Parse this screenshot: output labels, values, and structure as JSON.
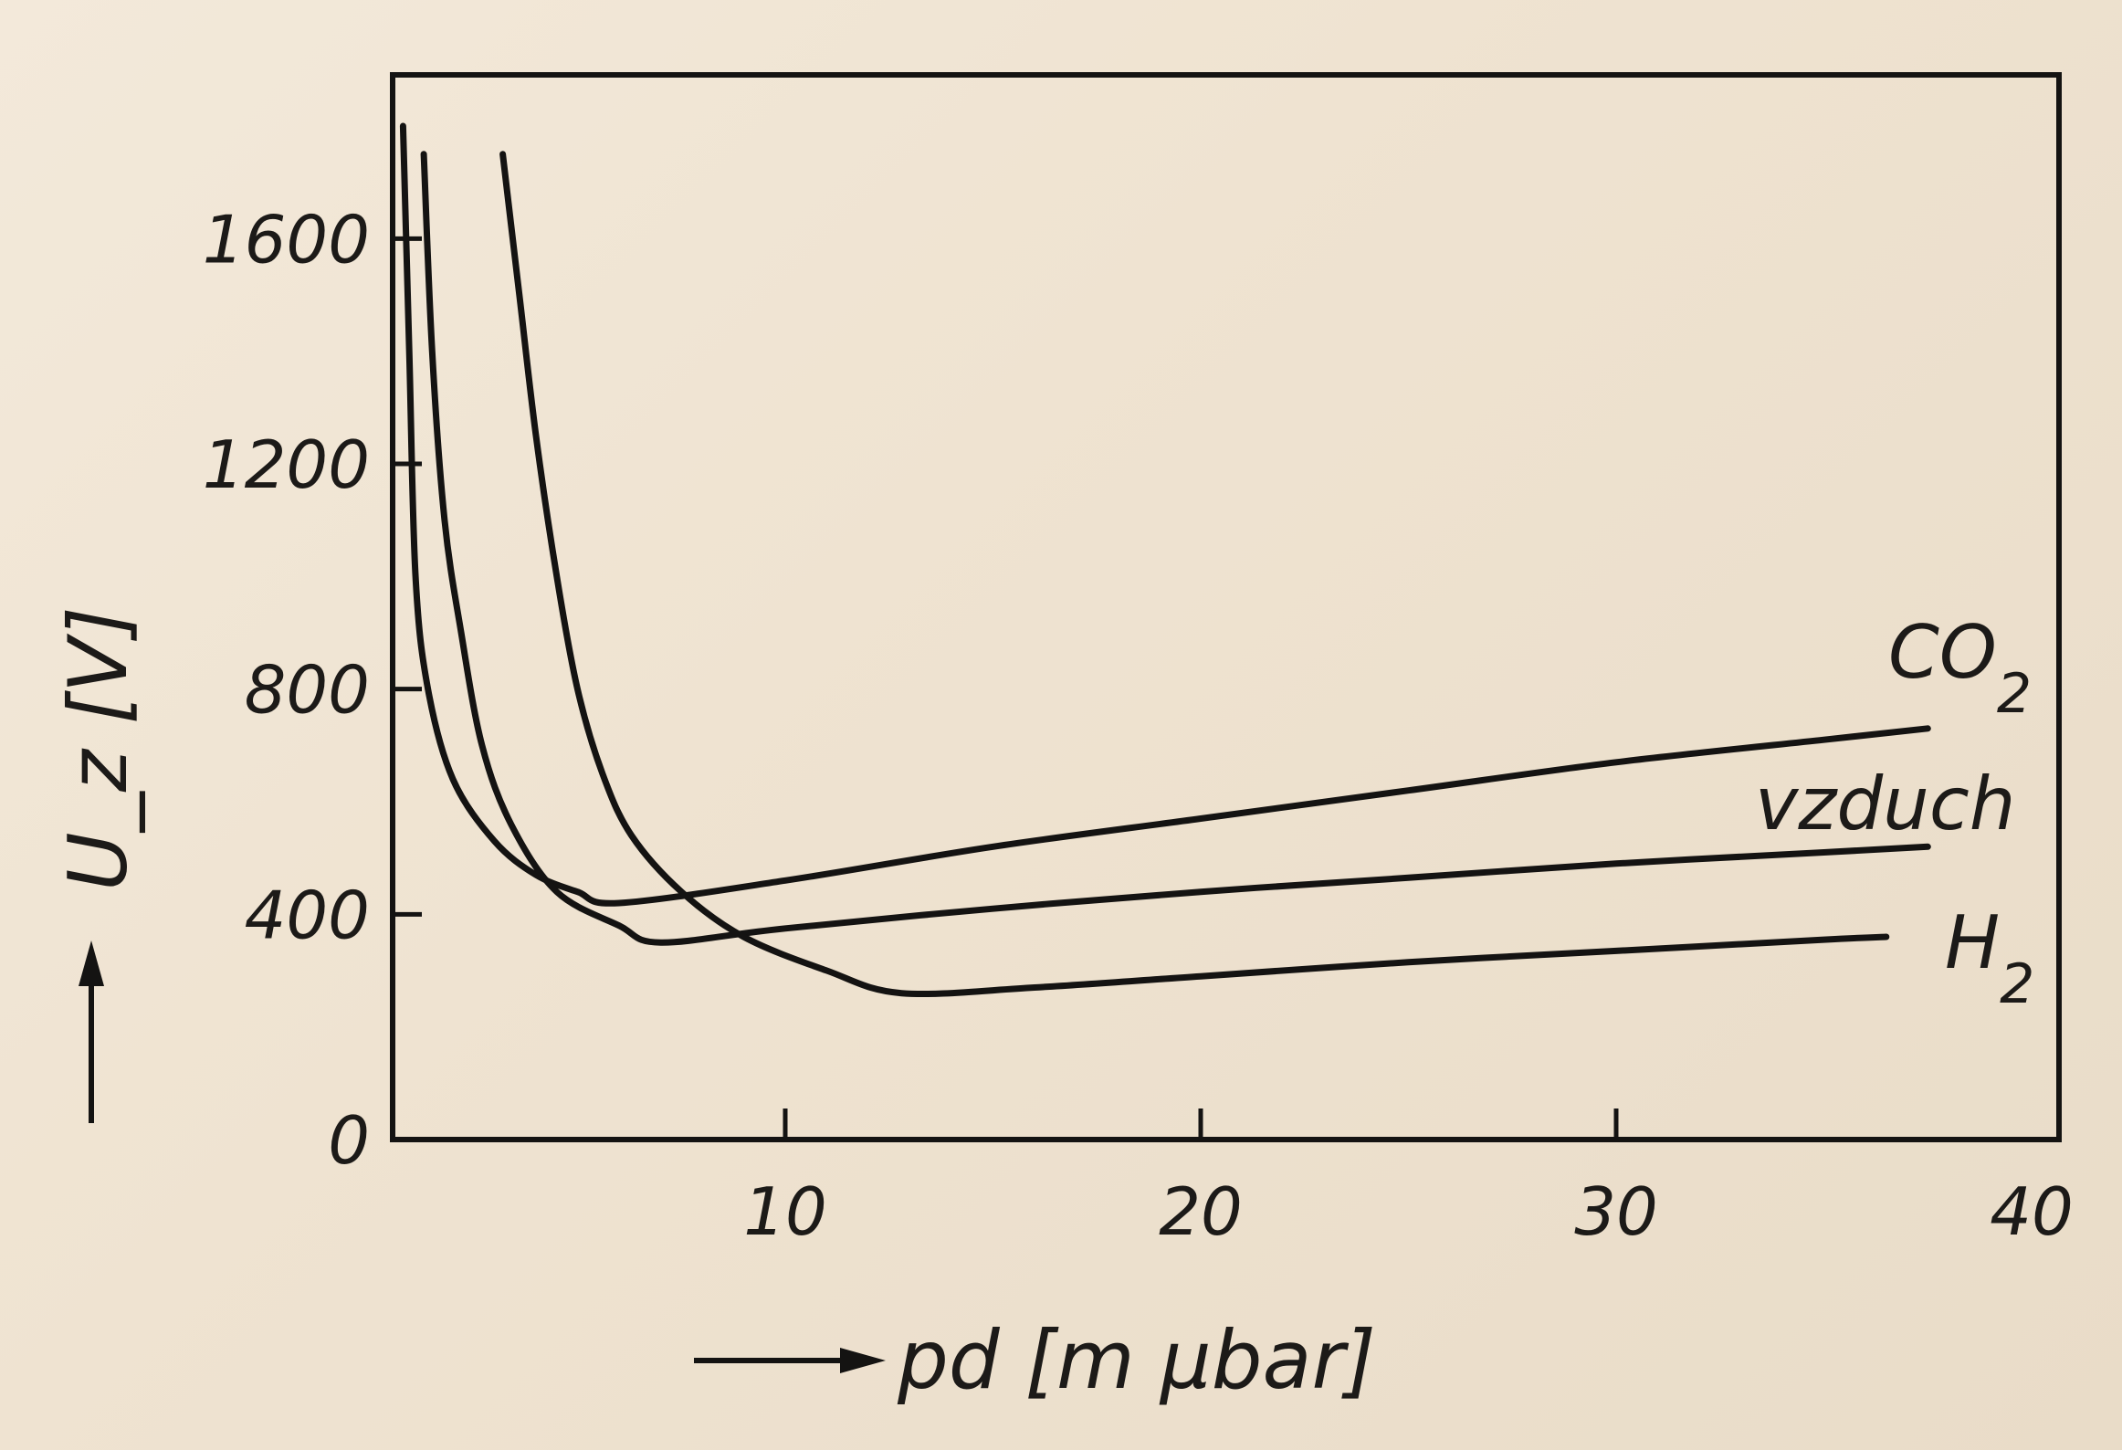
{
  "chart_data": {
    "type": "line",
    "title": "",
    "xlabel": "pd [m μbar]",
    "ylabel": "U_z [V]",
    "xlim": [
      0,
      40
    ],
    "ylim": [
      0,
      1800
    ],
    "xticks": [
      "10",
      "20",
      "30",
      "40"
    ],
    "yticks": [
      "0",
      "400",
      "800",
      "1200",
      "1600"
    ],
    "xtick_values": [
      10,
      20,
      30,
      40
    ],
    "ytick_values": [
      0,
      400,
      800,
      1200,
      1600
    ],
    "grid": false,
    "series": [
      {
        "name": "CO2",
        "label_main": "CO",
        "label_sub": "2",
        "x": [
          0.8,
          0.95,
          1.1,
          1.4,
          2.0,
          3.0,
          4.0,
          5.0,
          6.0,
          10.0,
          15.0,
          20.0,
          25.0,
          30.0,
          35.0,
          37.5
        ],
        "y": [
          1800,
          1400,
          1000,
          800,
          640,
          530,
          470,
          440,
          420,
          460,
          520,
          570,
          620,
          670,
          710,
          730
        ]
      },
      {
        "name": "vzduch",
        "label_main": "vzduch",
        "label_sub": "",
        "x": [
          1.3,
          1.5,
          1.8,
          2.2,
          2.7,
          3.4,
          4.5,
          6.0,
          7.0,
          10.0,
          15.0,
          20.0,
          25.0,
          30.0,
          35.0,
          37.5
        ],
        "y": [
          1750,
          1400,
          1100,
          900,
          700,
          560,
          440,
          380,
          350,
          375,
          410,
          440,
          465,
          490,
          510,
          520
        ]
      },
      {
        "name": "H2",
        "label_main": "H",
        "label_sub": "2",
        "x": [
          3.2,
          3.6,
          4.0,
          4.5,
          5.0,
          5.6,
          6.3,
          7.5,
          9.0,
          11.0,
          12.8,
          16.0,
          20.0,
          25.0,
          30.0,
          35.0,
          36.5
        ],
        "y": [
          1750,
          1500,
          1250,
          1000,
          800,
          650,
          540,
          440,
          360,
          300,
          260,
          270,
          290,
          315,
          335,
          355,
          360
        ]
      }
    ]
  }
}
